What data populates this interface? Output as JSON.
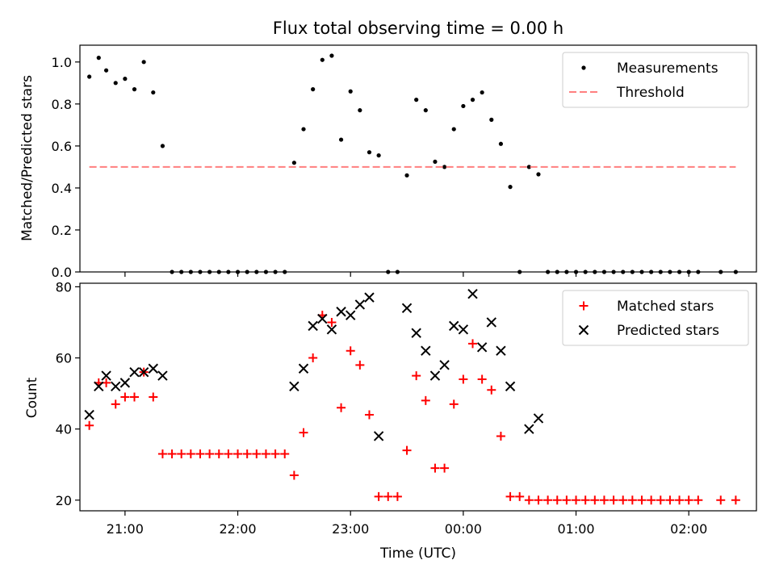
{
  "chart_data": [
    {
      "type": "scatter",
      "title": "Flux total observing time = 0.00 h",
      "xlabel": "",
      "ylabel": "Matched/Predicted stars",
      "xlim": [
        "20:36",
        "02:36"
      ],
      "ylim": [
        0,
        1.08
      ],
      "yticks": [
        "0.0",
        "0.2",
        "0.4",
        "0.6",
        "0.8",
        "1.0"
      ],
      "legend_position": "top-right",
      "series": [
        {
          "name": "Measurements",
          "marker": "dot",
          "color": "#000000",
          "points": [
            [
              "20:41",
              0.93
            ],
            [
              "20:46",
              1.02
            ],
            [
              "20:50",
              0.96
            ],
            [
              "20:55",
              0.9
            ],
            [
              "21:00",
              0.92
            ],
            [
              "21:05",
              0.87
            ],
            [
              "21:10",
              1.0
            ],
            [
              "21:15",
              0.855
            ],
            [
              "21:20",
              0.6
            ],
            [
              "21:25",
              0
            ],
            [
              "21:30",
              0
            ],
            [
              "21:35",
              0
            ],
            [
              "21:40",
              0
            ],
            [
              "21:45",
              0
            ],
            [
              "21:50",
              0
            ],
            [
              "21:55",
              0
            ],
            [
              "22:00",
              0
            ],
            [
              "22:05",
              0
            ],
            [
              "22:10",
              0
            ],
            [
              "22:15",
              0
            ],
            [
              "22:20",
              0
            ],
            [
              "22:25",
              0
            ],
            [
              "22:30",
              0.52
            ],
            [
              "22:35",
              0.68
            ],
            [
              "22:40",
              0.87
            ],
            [
              "22:45",
              1.01
            ],
            [
              "22:50",
              1.03
            ],
            [
              "22:55",
              0.63
            ],
            [
              "23:00",
              0.86
            ],
            [
              "23:05",
              0.77
            ],
            [
              "23:10",
              0.57
            ],
            [
              "23:15",
              0.555
            ],
            [
              "23:20",
              0
            ],
            [
              "23:25",
              0
            ],
            [
              "23:30",
              0.46
            ],
            [
              "23:35",
              0.82
            ],
            [
              "23:40",
              0.77
            ],
            [
              "23:45",
              0.525
            ],
            [
              "23:50",
              0.5
            ],
            [
              "23:55",
              0.68
            ],
            [
              "00:00",
              0.79
            ],
            [
              "00:05",
              0.82
            ],
            [
              "00:10",
              0.855
            ],
            [
              "00:15",
              0.725
            ],
            [
              "00:20",
              0.61
            ],
            [
              "00:25",
              0.405
            ],
            [
              "00:30",
              0
            ],
            [
              "00:35",
              0.5
            ],
            [
              "00:40",
              0.465
            ],
            [
              "00:45",
              0
            ],
            [
              "00:50",
              0
            ],
            [
              "00:55",
              0
            ],
            [
              "01:00",
              0
            ],
            [
              "01:05",
              0
            ],
            [
              "01:10",
              0
            ],
            [
              "01:15",
              0
            ],
            [
              "01:20",
              0
            ],
            [
              "01:25",
              0
            ],
            [
              "01:30",
              0
            ],
            [
              "01:35",
              0
            ],
            [
              "01:40",
              0
            ],
            [
              "01:45",
              0
            ],
            [
              "01:50",
              0
            ],
            [
              "01:55",
              0
            ],
            [
              "02:00",
              0
            ],
            [
              "02:05",
              0
            ],
            [
              "02:17",
              0
            ],
            [
              "02:25",
              0
            ]
          ]
        },
        {
          "name": "Threshold",
          "line_style": "dashed",
          "color": "#ff7f7f",
          "points": [
            [
              "20:41",
              0.5
            ],
            [
              "02:25",
              0.5
            ]
          ]
        }
      ]
    },
    {
      "type": "scatter",
      "title": "",
      "xlabel": "Time (UTC)",
      "ylabel": "Count",
      "xlim": [
        "20:36",
        "02:36"
      ],
      "ylim": [
        17,
        81
      ],
      "yticks": [
        "20",
        "40",
        "60",
        "80"
      ],
      "xticks": [
        "21:00",
        "22:00",
        "23:00",
        "00:00",
        "01:00",
        "02:00"
      ],
      "legend_position": "top-right",
      "series": [
        {
          "name": "Matched stars",
          "marker": "plus",
          "color": "#ff0000",
          "points": [
            [
              "20:41",
              41
            ],
            [
              "20:46",
              53
            ],
            [
              "20:50",
              53
            ],
            [
              "20:55",
              47
            ],
            [
              "21:00",
              49
            ],
            [
              "21:05",
              49
            ],
            [
              "21:10",
              56
            ],
            [
              "21:15",
              49
            ],
            [
              "21:20",
              33
            ],
            [
              "21:25",
              33
            ],
            [
              "21:30",
              33
            ],
            [
              "21:35",
              33
            ],
            [
              "21:40",
              33
            ],
            [
              "21:45",
              33
            ],
            [
              "21:50",
              33
            ],
            [
              "21:55",
              33
            ],
            [
              "22:00",
              33
            ],
            [
              "22:05",
              33
            ],
            [
              "22:10",
              33
            ],
            [
              "22:15",
              33
            ],
            [
              "22:20",
              33
            ],
            [
              "22:25",
              33
            ],
            [
              "22:30",
              27
            ],
            [
              "22:35",
              39
            ],
            [
              "22:40",
              60
            ],
            [
              "22:45",
              72
            ],
            [
              "22:50",
              70
            ],
            [
              "22:55",
              46
            ],
            [
              "23:00",
              62
            ],
            [
              "23:05",
              58
            ],
            [
              "23:10",
              44
            ],
            [
              "23:15",
              21
            ],
            [
              "23:20",
              21
            ],
            [
              "23:25",
              21
            ],
            [
              "23:30",
              34
            ],
            [
              "23:35",
              55
            ],
            [
              "23:40",
              48
            ],
            [
              "23:45",
              29
            ],
            [
              "23:50",
              29
            ],
            [
              "23:55",
              47
            ],
            [
              "00:00",
              54
            ],
            [
              "00:05",
              64
            ],
            [
              "00:10",
              54
            ],
            [
              "00:15",
              51
            ],
            [
              "00:20",
              38
            ],
            [
              "00:25",
              21
            ],
            [
              "00:30",
              21
            ],
            [
              "00:35",
              20
            ],
            [
              "00:40",
              20
            ],
            [
              "00:45",
              20
            ],
            [
              "00:50",
              20
            ],
            [
              "00:55",
              20
            ],
            [
              "01:00",
              20
            ],
            [
              "01:05",
              20
            ],
            [
              "01:10",
              20
            ],
            [
              "01:15",
              20
            ],
            [
              "01:20",
              20
            ],
            [
              "01:25",
              20
            ],
            [
              "01:30",
              20
            ],
            [
              "01:35",
              20
            ],
            [
              "01:40",
              20
            ],
            [
              "01:45",
              20
            ],
            [
              "01:50",
              20
            ],
            [
              "01:55",
              20
            ],
            [
              "02:00",
              20
            ],
            [
              "02:05",
              20
            ],
            [
              "02:17",
              20
            ],
            [
              "02:25",
              20
            ]
          ]
        },
        {
          "name": "Predicted stars",
          "marker": "x",
          "color": "#000000",
          "points": [
            [
              "20:41",
              44
            ],
            [
              "20:46",
              52
            ],
            [
              "20:50",
              55
            ],
            [
              "20:55",
              52
            ],
            [
              "21:00",
              53
            ],
            [
              "21:05",
              56
            ],
            [
              "21:10",
              56
            ],
            [
              "21:15",
              57
            ],
            [
              "21:20",
              55
            ],
            [
              "22:30",
              52
            ],
            [
              "22:35",
              57
            ],
            [
              "22:40",
              69
            ],
            [
              "22:45",
              71
            ],
            [
              "22:50",
              68
            ],
            [
              "22:55",
              73
            ],
            [
              "23:00",
              72
            ],
            [
              "23:05",
              75
            ],
            [
              "23:10",
              77
            ],
            [
              "23:15",
              38
            ],
            [
              "23:30",
              74
            ],
            [
              "23:35",
              67
            ],
            [
              "23:40",
              62
            ],
            [
              "23:45",
              55
            ],
            [
              "23:50",
              58
            ],
            [
              "23:55",
              69
            ],
            [
              "00:00",
              68
            ],
            [
              "00:05",
              78
            ],
            [
              "00:10",
              63
            ],
            [
              "00:15",
              70
            ],
            [
              "00:20",
              62
            ],
            [
              "00:25",
              52
            ],
            [
              "00:35",
              40
            ],
            [
              "00:40",
              43
            ]
          ]
        }
      ]
    }
  ]
}
